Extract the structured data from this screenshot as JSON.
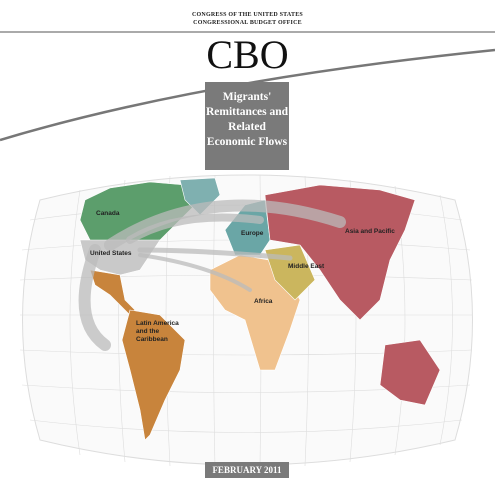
{
  "header": {
    "line1": "CONGRESS OF THE UNITED STATES",
    "line2": "CONGRESSIONAL BUDGET OFFICE",
    "logo": "CBO"
  },
  "title": "Migrants' Remittances and Related Economic Flows",
  "map": {
    "regions": [
      "Canada",
      "United States",
      "Europe",
      "Asia and Pacific",
      "Middle East",
      "Africa",
      "Latin America and the Caribbean"
    ]
  },
  "date": "FEBRUARY 2011"
}
